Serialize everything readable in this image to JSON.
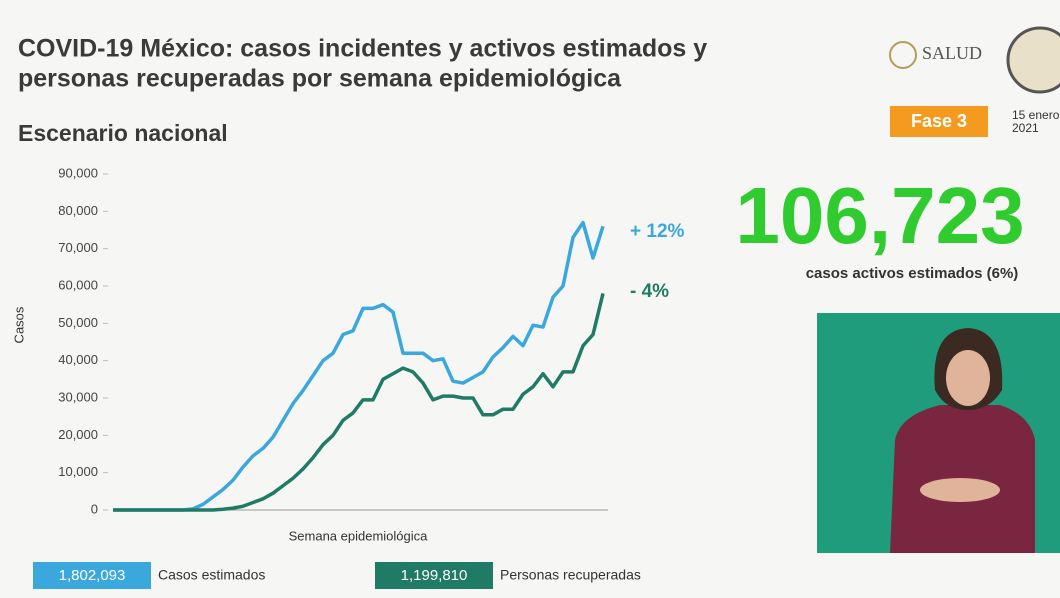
{
  "header": {
    "title": [
      "COVID-19 México: casos incidentes y activos estimados y",
      "personas recuperadas por semana epidemiológica"
    ],
    "subtitle": "Escenario nacional",
    "logo": "SALUD",
    "phase": "Fase 3",
    "date": [
      "15 enero",
      "2021"
    ]
  },
  "highlight": {
    "number": "106,723",
    "caption": "casos activos estimados (6%)"
  },
  "chart_data": {
    "type": "line",
    "y_label": "Casos",
    "x_label": "Semana epidemiológica",
    "categories": [
      null,
      null,
      null,
      null,
      null,
      null,
      null,
      null,
      null,
      null,
      null,
      null,
      null,
      null,
      null,
      null,
      null,
      null,
      null,
      null,
      null,
      null,
      null,
      null,
      null,
      null,
      null,
      null,
      null,
      null,
      null,
      null,
      null,
      null,
      null,
      null,
      null,
      null,
      null,
      null,
      null,
      null,
      null,
      null,
      null,
      null,
      null,
      null,
      null,
      null
    ],
    "ylim": [
      0,
      90000
    ],
    "yticks": [
      0,
      {
        "value": 10000,
        "label": "10,000"
      },
      {
        "value": 20000,
        "label": "20,000"
      },
      {
        "value": 30000,
        "label": "30,000"
      },
      {
        "value": 40000,
        "label": "40,000"
      },
      {
        "value": 50000,
        "label": "50,000"
      },
      {
        "value": 60000,
        "label": "60,000"
      },
      {
        "value": 70000,
        "label": "70,000"
      },
      {
        "value": 80000,
        "label": "80,000"
      },
      {
        "value": 90000,
        "label": "90,000"
      }
    ],
    "series": [
      {
        "name": "Casos estimados",
        "color": "#3aa8dc",
        "total": "1,802,093",
        "annotation": "+ 12%",
        "values": [
          0,
          0,
          0,
          0,
          0,
          0,
          0,
          0,
          300,
          1500,
          3500,
          5500,
          8000,
          11500,
          14500,
          16500,
          19500,
          24000,
          28500,
          32000,
          36000,
          40000,
          42000,
          47000,
          48000,
          54000,
          54000,
          55000,
          53000,
          42000,
          42000,
          42000,
          40000,
          40500,
          34500,
          34000,
          35500,
          37000,
          41000,
          43500,
          46500,
          44000,
          49500,
          49000,
          57000,
          60000,
          73000,
          77000,
          67500,
          76000
        ]
      },
      {
        "name": "Personas recuperadas",
        "color": "#1f7a66",
        "total": "1,199,810",
        "annotation": "- 4%",
        "values": [
          0,
          0,
          0,
          0,
          0,
          0,
          0,
          0,
          0,
          0,
          0,
          200,
          500,
          1000,
          2000,
          3000,
          4500,
          6500,
          8500,
          11000,
          14000,
          17500,
          20000,
          24000,
          26000,
          29500,
          29500,
          35000,
          36500,
          38000,
          37000,
          34000,
          29500,
          30500,
          30500,
          30000,
          30000,
          25500,
          25500,
          27000,
          27000,
          31000,
          33000,
          36500,
          33000,
          37000,
          37000,
          44000,
          47000,
          58000
        ]
      }
    ]
  }
}
